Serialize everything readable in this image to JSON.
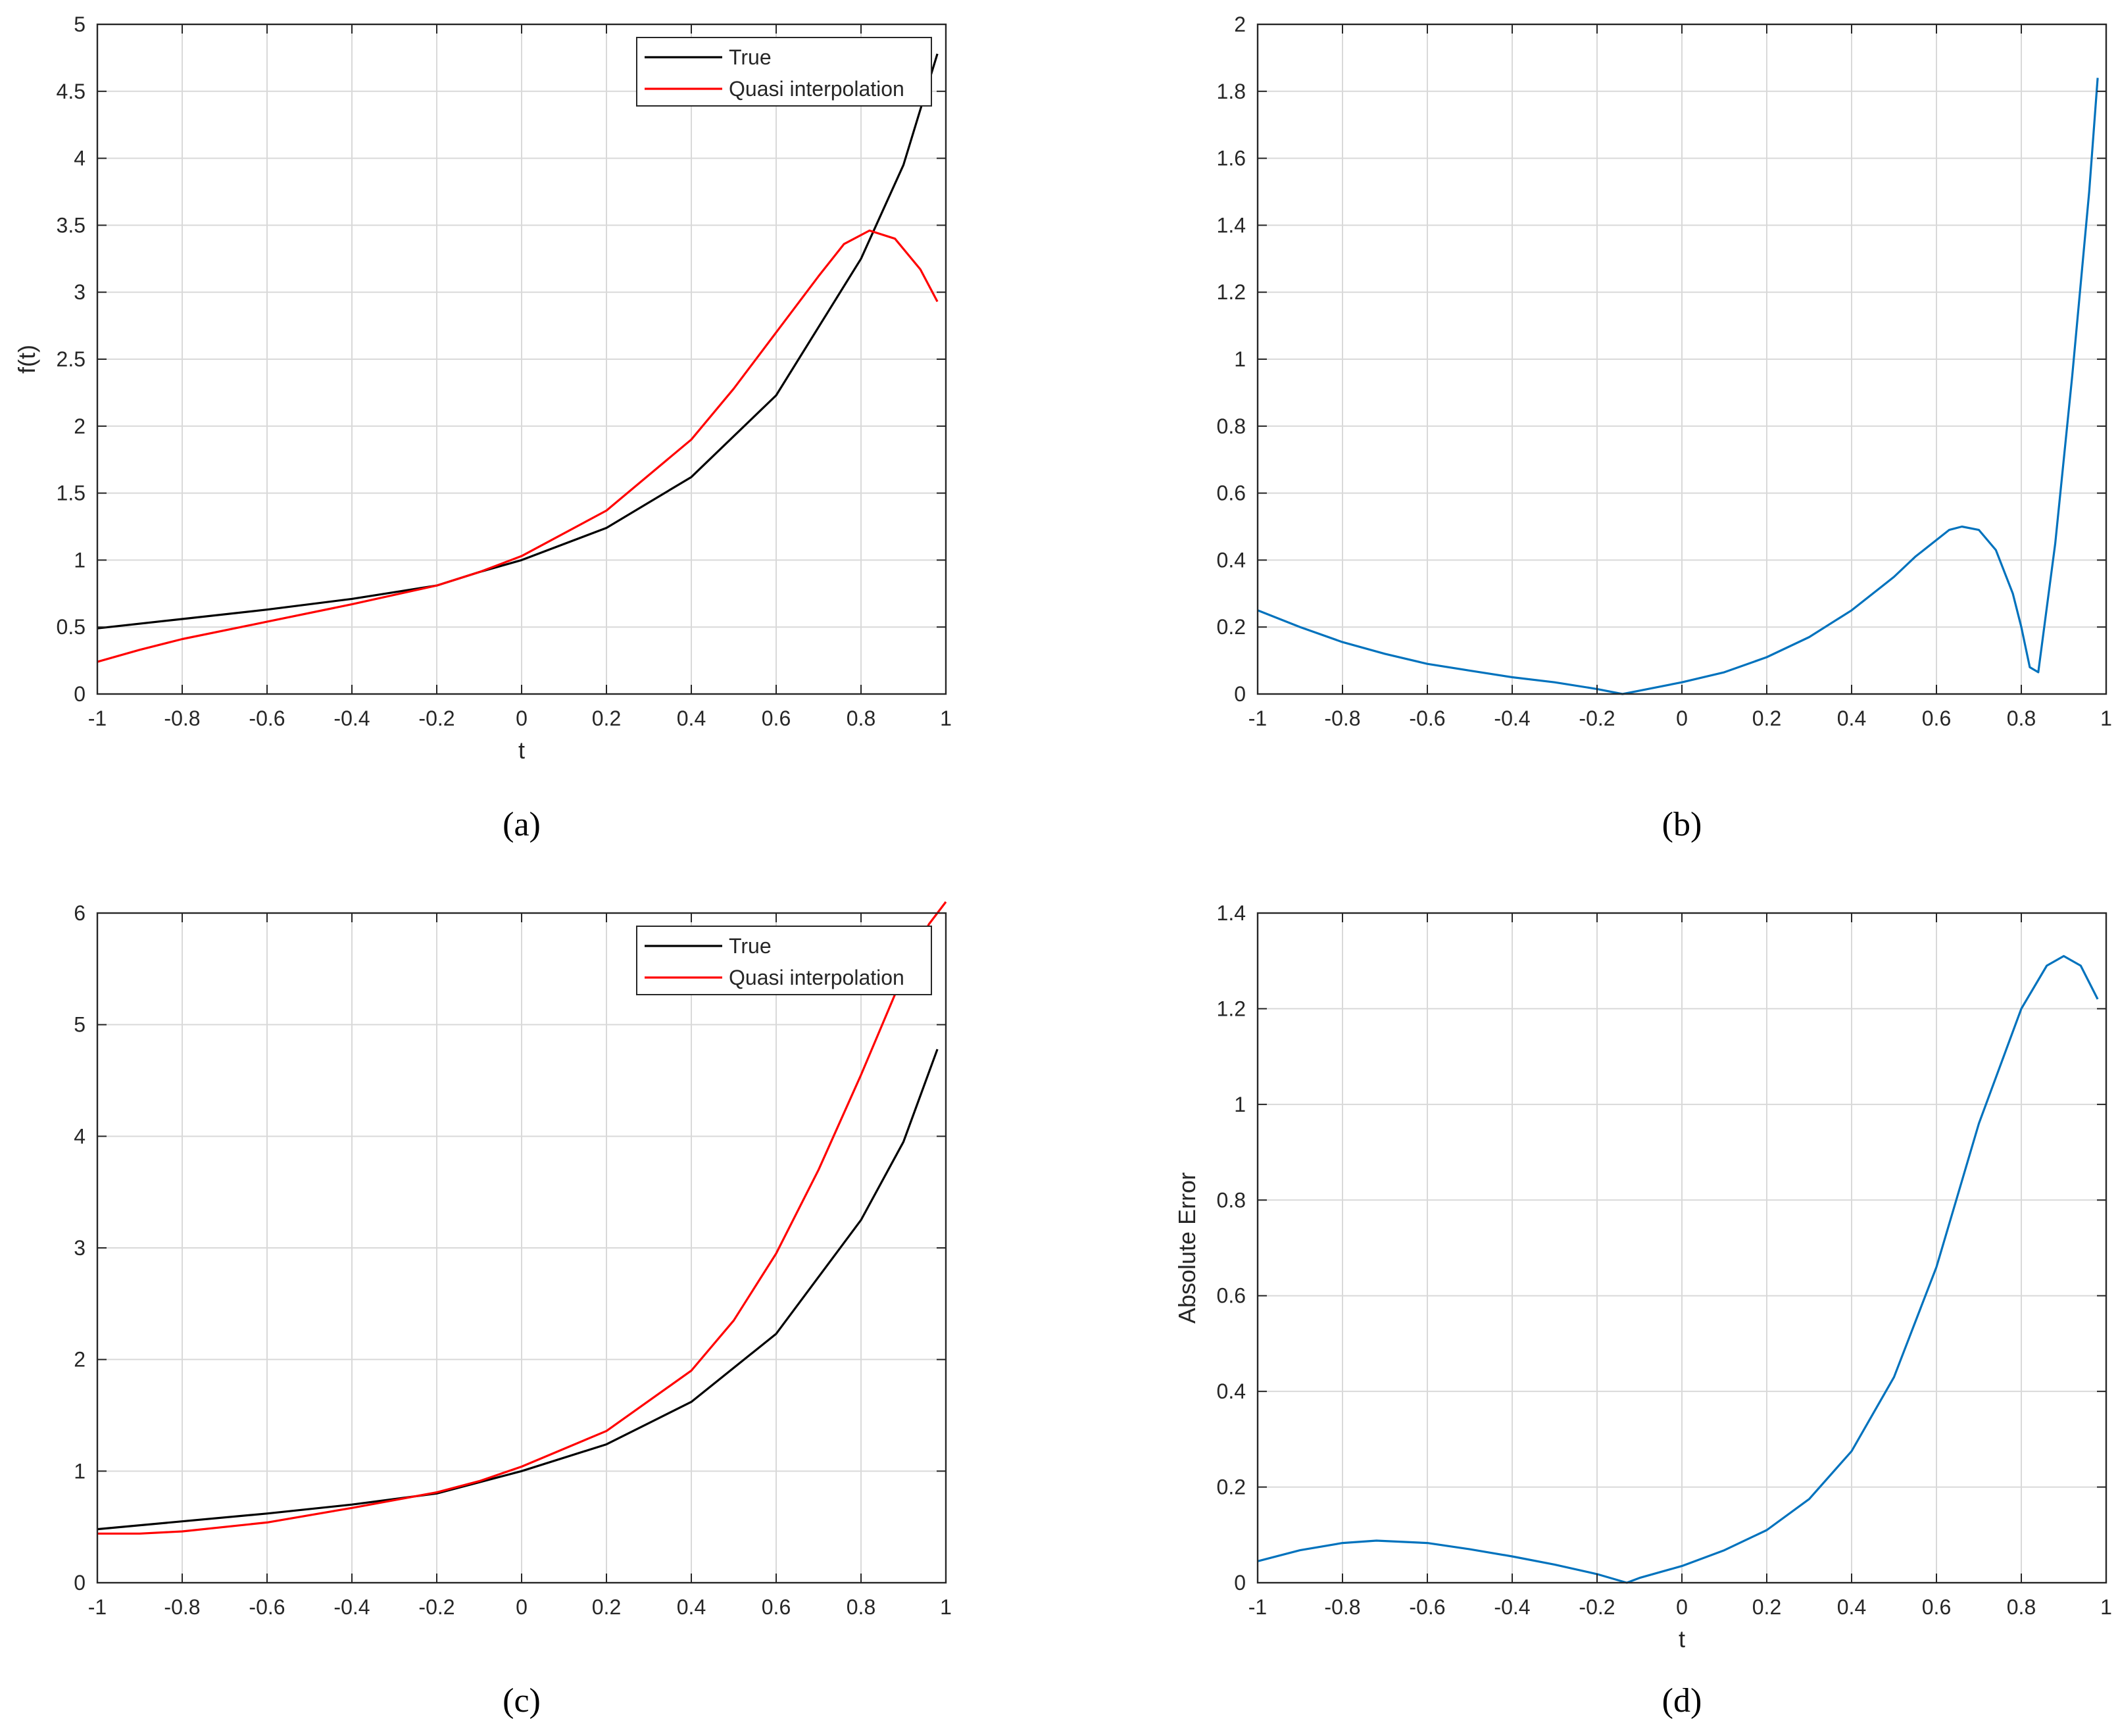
{
  "colors": {
    "true": "#000000",
    "quasi": "#ff0000",
    "error": "#0072bd",
    "grid": "#d9d9d9",
    "axis": "#262626"
  },
  "chart_data": [
    {
      "id": "a",
      "type": "line",
      "caption": "(a)",
      "xlabel": "t",
      "ylabel": "f(t)",
      "xlim": [
        -1,
        1
      ],
      "ylim": [
        0,
        5
      ],
      "xticks": [
        -1,
        -0.8,
        -0.6,
        -0.4,
        -0.2,
        0,
        0.2,
        0.4,
        0.6,
        0.8,
        1
      ],
      "xtick_labels": [
        "-1",
        "-0.8",
        "-0.6",
        "-0.4",
        "-0.2",
        "0",
        "0.2",
        "0.4",
        "0.6",
        "0.8",
        "1"
      ],
      "yticks": [
        0,
        0.5,
        1,
        1.5,
        2,
        2.5,
        3,
        3.5,
        4,
        4.5,
        5
      ],
      "ytick_labels": [
        "0",
        "0.5",
        "1",
        "1.5",
        "2",
        "2.5",
        "3",
        "3.5",
        "4",
        "4.5",
        "5"
      ],
      "grid": true,
      "legend": "top-right",
      "series": [
        {
          "name": "True",
          "color_key": "true",
          "x": [
            -1,
            -0.8,
            -0.6,
            -0.4,
            -0.2,
            -0.1,
            0,
            0.2,
            0.4,
            0.6,
            0.8,
            0.9,
            0.98
          ],
          "y": [
            0.49,
            0.56,
            0.63,
            0.71,
            0.81,
            0.91,
            1.0,
            1.24,
            1.62,
            2.23,
            3.25,
            3.95,
            4.78
          ]
        },
        {
          "name": "Quasi interpolation",
          "color_key": "quasi",
          "x": [
            -1,
            -0.9,
            -0.8,
            -0.6,
            -0.4,
            -0.2,
            -0.1,
            0,
            0.2,
            0.4,
            0.5,
            0.6,
            0.7,
            0.76,
            0.82,
            0.88,
            0.94,
            0.98
          ],
          "y": [
            0.24,
            0.33,
            0.41,
            0.54,
            0.67,
            0.81,
            0.91,
            1.03,
            1.37,
            1.9,
            2.28,
            2.7,
            3.12,
            3.36,
            3.46,
            3.4,
            3.17,
            2.93
          ]
        }
      ]
    },
    {
      "id": "b",
      "type": "line",
      "caption": "(b)",
      "xlabel": "",
      "ylabel": "",
      "xlim": [
        -1,
        1
      ],
      "ylim": [
        0,
        2
      ],
      "xticks": [
        -1,
        -0.8,
        -0.6,
        -0.4,
        -0.2,
        0,
        0.2,
        0.4,
        0.6,
        0.8,
        1
      ],
      "xtick_labels": [
        "-1",
        "-0.8",
        "-0.6",
        "-0.4",
        "-0.2",
        "0",
        "0.2",
        "0.4",
        "0.6",
        "0.8",
        "1"
      ],
      "yticks": [
        0,
        0.2,
        0.4,
        0.6,
        0.8,
        1,
        1.2,
        1.4,
        1.6,
        1.8,
        2
      ],
      "ytick_labels": [
        "0",
        "0.2",
        "0.4",
        "0.6",
        "0.8",
        "1",
        "1.2",
        "1.4",
        "1.6",
        "1.8",
        "2"
      ],
      "grid": true,
      "legend": "none",
      "series": [
        {
          "color_key": "error",
          "x": [
            -1,
            -0.9,
            -0.8,
            -0.7,
            -0.6,
            -0.5,
            -0.4,
            -0.3,
            -0.2,
            -0.14,
            -0.1,
            0,
            0.1,
            0.2,
            0.3,
            0.4,
            0.5,
            0.55,
            0.6,
            0.63,
            0.66,
            0.7,
            0.74,
            0.78,
            0.8,
            0.82,
            0.84,
            0.88,
            0.92,
            0.96,
            0.98
          ],
          "y": [
            0.25,
            0.2,
            0.155,
            0.12,
            0.09,
            0.07,
            0.05,
            0.035,
            0.015,
            0.0,
            0.01,
            0.035,
            0.065,
            0.11,
            0.17,
            0.25,
            0.35,
            0.41,
            0.46,
            0.49,
            0.5,
            0.49,
            0.43,
            0.3,
            0.2,
            0.08,
            0.065,
            0.45,
            0.95,
            1.5,
            1.84
          ]
        }
      ]
    },
    {
      "id": "c",
      "type": "line",
      "caption": "(c)",
      "xlabel": "",
      "ylabel": "",
      "xlim": [
        -1,
        1
      ],
      "ylim": [
        0,
        6
      ],
      "xticks": [
        -1,
        -0.8,
        -0.6,
        -0.4,
        -0.2,
        0,
        0.2,
        0.4,
        0.6,
        0.8,
        1
      ],
      "xtick_labels": [
        "-1",
        "-0.8",
        "-0.6",
        "-0.4",
        "-0.2",
        "0",
        "0.2",
        "0.4",
        "0.6",
        "0.8",
        "1"
      ],
      "yticks": [
        0,
        1,
        2,
        3,
        4,
        5,
        6
      ],
      "ytick_labels": [
        "0",
        "1",
        "2",
        "3",
        "4",
        "5",
        "6"
      ],
      "grid": true,
      "legend": "top-right",
      "series": [
        {
          "name": "True",
          "color_key": "true",
          "x": [
            -1,
            -0.8,
            -0.6,
            -0.4,
            -0.2,
            -0.1,
            0,
            0.2,
            0.4,
            0.6,
            0.8,
            0.9,
            0.98
          ],
          "y": [
            0.48,
            0.55,
            0.62,
            0.7,
            0.8,
            0.9,
            1.0,
            1.24,
            1.62,
            2.23,
            3.25,
            3.95,
            4.78
          ]
        },
        {
          "name": "Quasi interpolation",
          "color_key": "quasi",
          "x": [
            -1,
            -0.9,
            -0.8,
            -0.6,
            -0.4,
            -0.2,
            -0.1,
            0,
            0.2,
            0.4,
            0.5,
            0.6,
            0.7,
            0.8,
            0.9,
            0.96,
            1.0
          ],
          "y": [
            0.44,
            0.44,
            0.46,
            0.54,
            0.67,
            0.81,
            0.91,
            1.04,
            1.36,
            1.9,
            2.35,
            2.95,
            3.7,
            4.55,
            5.45,
            5.9,
            6.1
          ]
        }
      ]
    },
    {
      "id": "d",
      "type": "line",
      "caption": "(d)",
      "xlabel": "t",
      "ylabel": "Absolute Error",
      "xlim": [
        -1,
        1
      ],
      "ylim": [
        0,
        1.4
      ],
      "xticks": [
        -1,
        -0.8,
        -0.6,
        -0.4,
        -0.2,
        0,
        0.2,
        0.4,
        0.6,
        0.8,
        1
      ],
      "xtick_labels": [
        "-1",
        "-0.8",
        "-0.6",
        "-0.4",
        "-0.2",
        "0",
        "0.2",
        "0.4",
        "0.6",
        "0.8",
        "1"
      ],
      "yticks": [
        0,
        0.2,
        0.4,
        0.6,
        0.8,
        1,
        1.2,
        1.4
      ],
      "ytick_labels": [
        "0",
        "0.2",
        "0.4",
        "0.6",
        "0.8",
        "1",
        "1.2",
        "1.4"
      ],
      "grid": true,
      "legend": "none",
      "series": [
        {
          "color_key": "error",
          "x": [
            -1,
            -0.9,
            -0.8,
            -0.72,
            -0.6,
            -0.5,
            -0.4,
            -0.3,
            -0.2,
            -0.13,
            -0.1,
            0,
            0.1,
            0.2,
            0.3,
            0.4,
            0.5,
            0.6,
            0.7,
            0.8,
            0.86,
            0.9,
            0.94,
            0.98
          ],
          "y": [
            0.045,
            0.068,
            0.083,
            0.088,
            0.083,
            0.07,
            0.055,
            0.038,
            0.018,
            0.0,
            0.01,
            0.035,
            0.068,
            0.11,
            0.175,
            0.275,
            0.43,
            0.66,
            0.96,
            1.2,
            1.29,
            1.31,
            1.29,
            1.22
          ]
        }
      ]
    }
  ]
}
